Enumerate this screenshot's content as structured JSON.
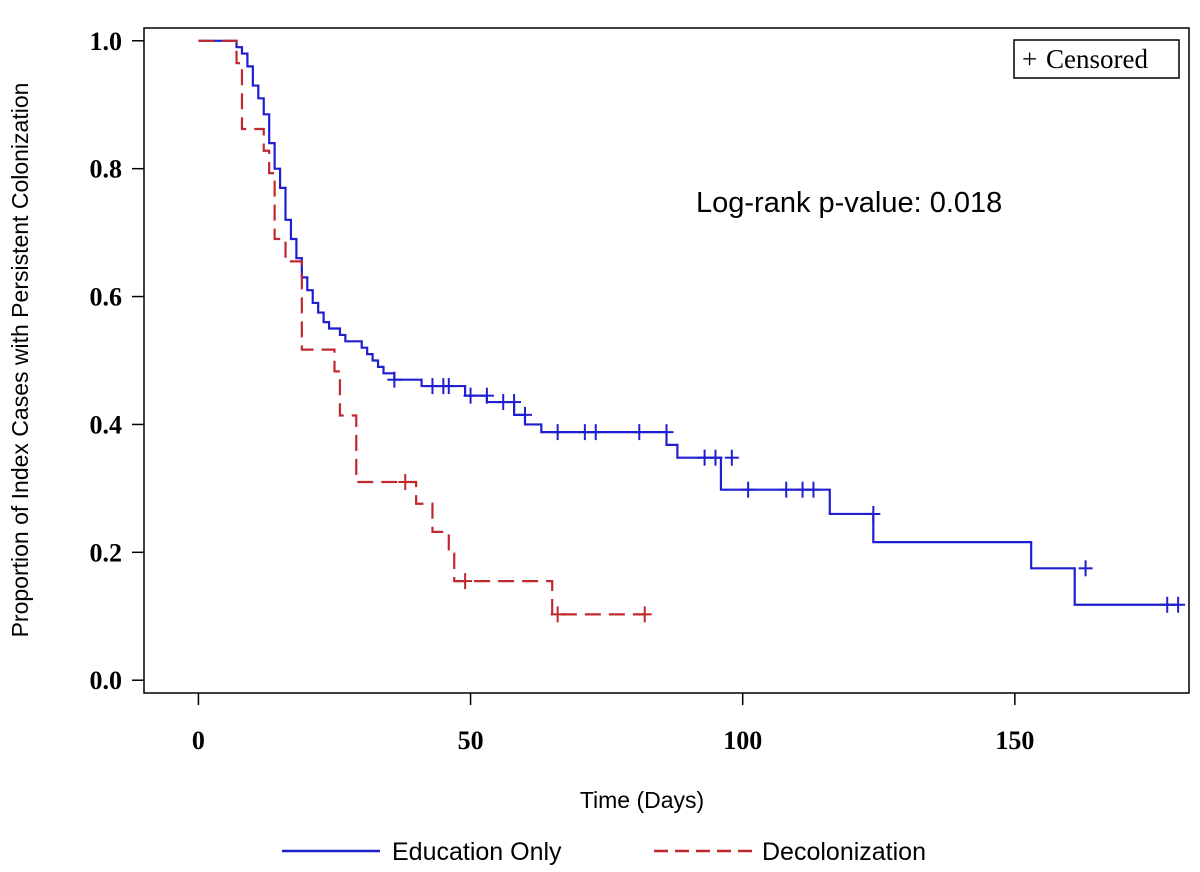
{
  "chart_data": {
    "type": "line",
    "subtype": "kaplan-meier step curve",
    "title": "",
    "xlabel": "Time (Days)",
    "ylabel": "Proportion of Index Cases with Persistent Colonization",
    "xlim": [
      -10,
      182
    ],
    "ylim": [
      -0.02,
      1.02
    ],
    "xticks": [
      0,
      50,
      100,
      150
    ],
    "yticks": [
      0.0,
      0.2,
      0.4,
      0.6,
      0.8,
      1.0
    ],
    "xtick_labels": [
      "0",
      "50",
      "100",
      "150"
    ],
    "ytick_labels": [
      "0.0",
      "0.2",
      "0.4",
      "0.6",
      "0.8",
      "1.0"
    ],
    "grid": false,
    "legend_position": "bottom",
    "censor_legend": {
      "symbol": "+",
      "label": "Censored",
      "position": "top-right"
    },
    "annotation": "Log-rank p-value: 0.018",
    "series": [
      {
        "name": "Education Only",
        "color": "#1f1fd0",
        "dash": "solid",
        "steps": [
          [
            0,
            1.0
          ],
          [
            7,
            0.99
          ],
          [
            8,
            0.98
          ],
          [
            9,
            0.96
          ],
          [
            10,
            0.93
          ],
          [
            11,
            0.91
          ],
          [
            12,
            0.885
          ],
          [
            13,
            0.84
          ],
          [
            14,
            0.8
          ],
          [
            15,
            0.77
          ],
          [
            16,
            0.72
          ],
          [
            17,
            0.69
          ],
          [
            18,
            0.66
          ],
          [
            19,
            0.63
          ],
          [
            20,
            0.61
          ],
          [
            21,
            0.59
          ],
          [
            22,
            0.575
          ],
          [
            23,
            0.56
          ],
          [
            24,
            0.55
          ],
          [
            26,
            0.54
          ],
          [
            27,
            0.53
          ],
          [
            30,
            0.52
          ],
          [
            31,
            0.51
          ],
          [
            32,
            0.5
          ],
          [
            33,
            0.49
          ],
          [
            34,
            0.48
          ],
          [
            36,
            0.47
          ],
          [
            41,
            0.46
          ],
          [
            49,
            0.445
          ],
          [
            53,
            0.435
          ],
          [
            58,
            0.415
          ],
          [
            60,
            0.4
          ],
          [
            63,
            0.388
          ],
          [
            86,
            0.368
          ],
          [
            88,
            0.348
          ],
          [
            96,
            0.298
          ],
          [
            116,
            0.26
          ],
          [
            124,
            0.216
          ],
          [
            153,
            0.175
          ],
          [
            161,
            0.118
          ],
          [
            180,
            0.118
          ]
        ],
        "censored": [
          [
            36,
            0.47
          ],
          [
            43,
            0.46
          ],
          [
            45,
            0.46
          ],
          [
            46,
            0.46
          ],
          [
            50,
            0.445
          ],
          [
            53,
            0.445
          ],
          [
            56,
            0.435
          ],
          [
            58,
            0.435
          ],
          [
            60,
            0.415
          ],
          [
            66,
            0.388
          ],
          [
            71,
            0.388
          ],
          [
            73,
            0.388
          ],
          [
            81,
            0.388
          ],
          [
            86,
            0.388
          ],
          [
            93,
            0.348
          ],
          [
            95,
            0.348
          ],
          [
            98,
            0.348
          ],
          [
            101,
            0.298
          ],
          [
            108,
            0.298
          ],
          [
            111,
            0.298
          ],
          [
            113,
            0.298
          ],
          [
            124,
            0.26
          ],
          [
            163,
            0.175
          ],
          [
            178,
            0.118
          ],
          [
            180,
            0.118
          ]
        ]
      },
      {
        "name": "Decolonization",
        "color": "#c0282e",
        "dash": "dashed",
        "steps": [
          [
            0,
            1.0
          ],
          [
            7,
            0.965
          ],
          [
            8,
            0.862
          ],
          [
            12,
            0.828
          ],
          [
            13,
            0.793
          ],
          [
            14,
            0.69
          ],
          [
            16,
            0.655
          ],
          [
            19,
            0.517
          ],
          [
            25,
            0.483
          ],
          [
            26,
            0.414
          ],
          [
            29,
            0.31
          ],
          [
            40,
            0.276
          ],
          [
            43,
            0.232
          ],
          [
            46,
            0.198
          ],
          [
            47,
            0.155
          ],
          [
            65,
            0.103
          ],
          [
            82,
            0.103
          ]
        ],
        "censored": [
          [
            38,
            0.31
          ],
          [
            49,
            0.155
          ],
          [
            66,
            0.103
          ],
          [
            82,
            0.103
          ]
        ]
      }
    ]
  }
}
